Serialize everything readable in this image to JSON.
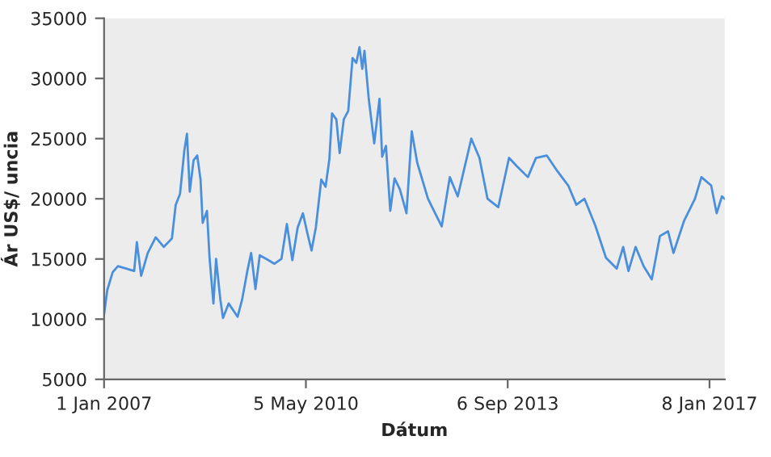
{
  "chart_data": {
    "type": "line",
    "xlabel": "Dátum",
    "ylabel": "Ár US$/ uncia",
    "xlim": [
      "2007-01-01",
      "2017-04-10"
    ],
    "ylim": [
      5000,
      35000
    ],
    "xticks": [
      {
        "value": "2007-01-01",
        "label": "1 Jan 2007"
      },
      {
        "value": "2010-05-05",
        "label": "5 May 2010"
      },
      {
        "value": "2013-09-06",
        "label": "6 Sep 2013"
      },
      {
        "value": "2017-01-08",
        "label": "8 Jan 2017"
      }
    ],
    "yticks": [
      5000,
      10000,
      15000,
      20000,
      25000,
      30000,
      35000
    ],
    "grid": false,
    "marker": "none",
    "line_style": "solid",
    "series": [
      {
        "color": "#4a8fdc",
        "x": [
          "2007-01-01",
          "2007-01-20",
          "2007-02-22",
          "2007-03-26",
          "2007-05-14",
          "2007-07-02",
          "2007-07-18",
          "2007-08-13",
          "2007-09-22",
          "2007-11-09",
          "2007-12-28",
          "2008-02-15",
          "2008-03-09",
          "2008-04-04",
          "2008-04-30",
          "2008-05-16",
          "2008-06-02",
          "2008-06-25",
          "2008-07-17",
          "2008-08-06",
          "2008-08-19",
          "2008-09-14",
          "2008-09-30",
          "2008-10-23",
          "2008-11-08",
          "2008-12-04",
          "2008-12-20",
          "2009-01-23",
          "2009-03-18",
          "2009-04-14",
          "2009-05-16",
          "2009-06-08",
          "2009-07-04",
          "2009-07-30",
          "2009-09-08",
          "2009-10-27",
          "2009-12-08",
          "2010-01-10",
          "2010-02-12",
          "2010-03-16",
          "2010-04-17",
          "2010-05-13",
          "2010-06-08",
          "2010-07-04",
          "2010-08-06",
          "2010-09-01",
          "2010-09-24",
          "2010-10-10",
          "2010-11-05",
          "2010-11-25",
          "2010-12-20",
          "2011-01-16",
          "2011-02-11",
          "2011-03-06",
          "2011-03-25",
          "2011-04-11",
          "2011-04-24",
          "2011-05-20",
          "2011-06-22",
          "2011-07-24",
          "2011-08-09",
          "2011-09-01",
          "2011-09-27",
          "2011-10-23",
          "2011-11-24",
          "2012-01-03",
          "2012-02-04",
          "2012-03-08",
          "2012-05-12",
          "2012-08-03",
          "2012-09-21",
          "2012-11-08",
          "2013-01-29",
          "2013-03-19",
          "2013-05-07",
          "2013-07-11",
          "2013-09-14",
          "2013-11-01",
          "2014-01-06",
          "2014-02-24",
          "2014-04-30",
          "2014-07-03",
          "2014-09-07",
          "2014-10-26",
          "2014-12-14",
          "2015-02-17",
          "2015-04-23",
          "2015-06-27",
          "2015-08-05",
          "2015-09-06",
          "2015-10-19",
          "2015-12-07",
          "2016-01-25",
          "2016-03-14",
          "2016-05-02",
          "2016-06-04",
          "2016-08-08",
          "2016-10-12",
          "2016-11-20",
          "2017-01-18",
          "2017-02-20",
          "2017-03-24",
          "2017-04-09"
        ],
        "values": [
          10400,
          12400,
          13900,
          14400,
          14200,
          14000,
          16400,
          13600,
          15500,
          16800,
          16000,
          16700,
          19500,
          20400,
          24000,
          25400,
          20600,
          23200,
          23600,
          21600,
          18000,
          19000,
          15000,
          11300,
          15000,
          11600,
          10100,
          11300,
          10200,
          11600,
          14000,
          15500,
          12500,
          15300,
          15000,
          14600,
          15000,
          17900,
          14900,
          17600,
          18800,
          17200,
          15700,
          17600,
          21600,
          21000,
          23300,
          27100,
          26600,
          23800,
          26600,
          27300,
          31700,
          31300,
          32600,
          30800,
          32300,
          28300,
          24600,
          28300,
          23500,
          24400,
          19000,
          21700,
          20800,
          18800,
          25600,
          23000,
          20000,
          17700,
          21800,
          20200,
          25000,
          23400,
          20000,
          19300,
          23400,
          22700,
          21800,
          23400,
          23600,
          22300,
          21100,
          19500,
          20000,
          17800,
          15100,
          14200,
          16000,
          14000,
          16000,
          14400,
          13300,
          16900,
          17300,
          15500,
          18200,
          20000,
          21800,
          21100,
          18800,
          20200,
          20000
        ]
      }
    ]
  }
}
